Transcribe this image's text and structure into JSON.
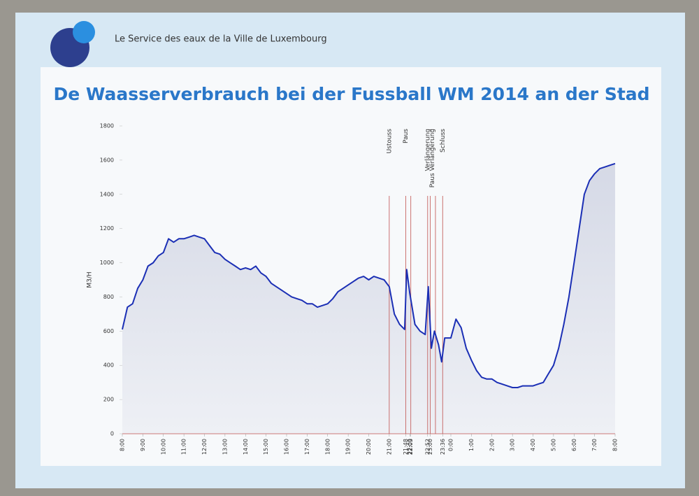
{
  "header": {
    "organization": "Le Service des eaux de la Ville de Luxembourg"
  },
  "chart_data": {
    "type": "line",
    "title": "De Waasserverbrauch bei der Fussball WM 2014 an der Stad",
    "ylabel": "M3/H",
    "color": "#1b2fb5",
    "event_color": "#c0504d",
    "ylim": [
      0,
      1800
    ],
    "yticks": [
      0,
      200,
      400,
      600,
      800,
      1000,
      1200,
      1400,
      1600,
      1800
    ],
    "xlim": [
      0,
      24
    ],
    "xticks": [
      {
        "value": 0,
        "label": "8:00"
      },
      {
        "value": 1,
        "label": "9:00"
      },
      {
        "value": 2,
        "label": "10:00"
      },
      {
        "value": 3,
        "label": "11:00"
      },
      {
        "value": 4,
        "label": "12:00"
      },
      {
        "value": 5,
        "label": "13:00"
      },
      {
        "value": 6,
        "label": "14:00"
      },
      {
        "value": 7,
        "label": "15:00"
      },
      {
        "value": 8,
        "label": "16:00"
      },
      {
        "value": 9,
        "label": "17:00"
      },
      {
        "value": 10,
        "label": "18:00"
      },
      {
        "value": 11,
        "label": "19:00"
      },
      {
        "value": 12,
        "label": "20:00"
      },
      {
        "value": 13,
        "label": "21:00"
      },
      {
        "value": 13.8,
        "label": "21:48"
      },
      {
        "value": 14,
        "label": "22:00"
      },
      {
        "value": 14.05,
        "label": "22:03"
      },
      {
        "value": 14.87,
        "label": "22:52"
      },
      {
        "value": 15,
        "label": "23:00"
      },
      {
        "value": 15.6,
        "label": "23:36"
      },
      {
        "value": 16,
        "label": "0:00"
      },
      {
        "value": 17,
        "label": "1:00"
      },
      {
        "value": 18,
        "label": "2:00"
      },
      {
        "value": 19,
        "label": "3:00"
      },
      {
        "value": 20,
        "label": "4:00"
      },
      {
        "value": 21,
        "label": "5:00"
      },
      {
        "value": 22,
        "label": "6:00"
      },
      {
        "value": 23,
        "label": "7:00"
      },
      {
        "value": 24,
        "label": "8:00"
      }
    ],
    "event_lines": [
      13,
      13.8,
      14.05,
      14.87,
      15,
      15.25,
      15.6
    ],
    "events": [
      {
        "label": "Ustouss",
        "x": 13
      },
      {
        "label": "Paus",
        "x": 13.8
      },
      {
        "label": "Verlängerung",
        "x": 14.87
      },
      {
        "label": "Paus Verlängerung",
        "x": 15.1
      },
      {
        "label": "Schluss",
        "x": 15.6
      }
    ],
    "x": [
      0,
      0.25,
      0.5,
      0.75,
      1,
      1.25,
      1.5,
      1.75,
      2,
      2.25,
      2.5,
      2.75,
      3,
      3.25,
      3.5,
      3.75,
      4,
      4.25,
      4.5,
      4.75,
      5,
      5.25,
      5.5,
      5.75,
      6,
      6.25,
      6.5,
      6.75,
      7,
      7.25,
      7.5,
      7.75,
      8,
      8.25,
      8.5,
      8.75,
      9,
      9.25,
      9.5,
      9.75,
      10,
      10.25,
      10.5,
      10.75,
      11,
      11.25,
      11.5,
      11.75,
      12,
      12.25,
      12.5,
      12.75,
      13,
      13.25,
      13.5,
      13.75,
      13.85,
      14,
      14.25,
      14.5,
      14.75,
      14.9,
      15.05,
      15.2,
      15.4,
      15.55,
      15.7,
      16,
      16.25,
      16.5,
      16.75,
      17,
      17.25,
      17.5,
      17.75,
      18,
      18.25,
      18.5,
      18.75,
      19,
      19.25,
      19.5,
      19.75,
      20,
      20.25,
      20.5,
      20.75,
      21,
      21.25,
      21.5,
      21.75,
      22,
      22.25,
      22.5,
      22.75,
      23,
      23.25,
      23.5,
      23.75,
      24
    ],
    "values": [
      610,
      740,
      760,
      850,
      900,
      980,
      1000,
      1040,
      1060,
      1140,
      1120,
      1140,
      1140,
      1150,
      1160,
      1150,
      1140,
      1100,
      1060,
      1050,
      1020,
      1000,
      980,
      960,
      970,
      960,
      980,
      940,
      920,
      880,
      860,
      840,
      820,
      800,
      790,
      780,
      760,
      760,
      740,
      750,
      760,
      790,
      830,
      850,
      870,
      890,
      910,
      920,
      900,
      920,
      910,
      900,
      860,
      700,
      640,
      610,
      960,
      820,
      640,
      600,
      580,
      860,
      500,
      600,
      520,
      420,
      560,
      560,
      670,
      620,
      500,
      430,
      370,
      330,
      320,
      320,
      300,
      290,
      280,
      270,
      270,
      280,
      280,
      280,
      290,
      300,
      350,
      400,
      500,
      640,
      800,
      1000,
      1200,
      1400,
      1480,
      1520,
      1550,
      1560,
      1570,
      1580
    ]
  }
}
